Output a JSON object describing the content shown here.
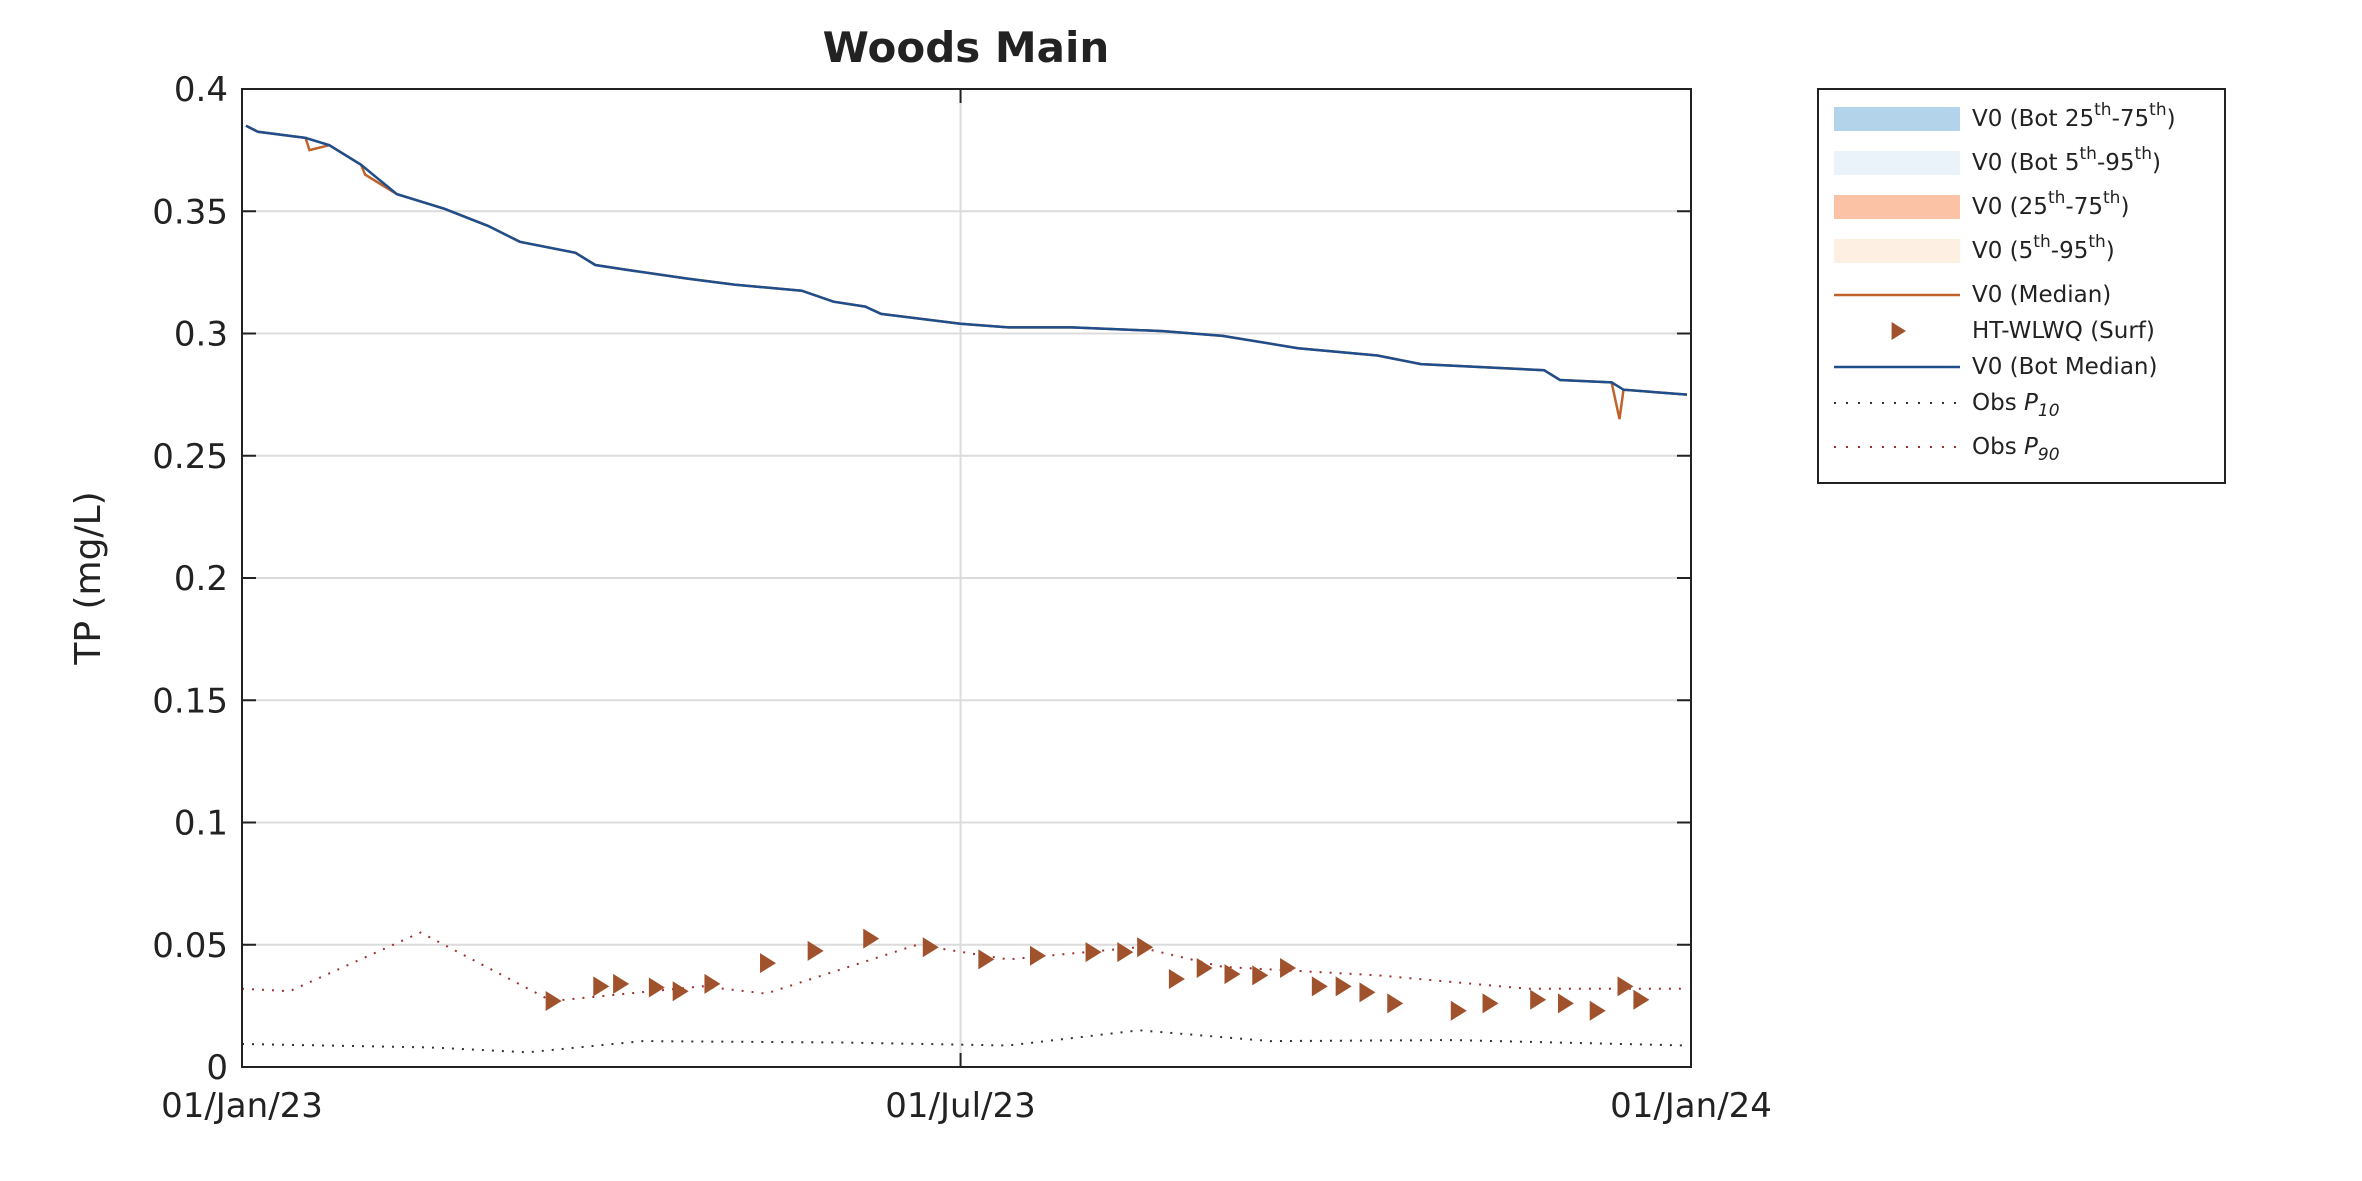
{
  "chart_data": {
    "type": "line",
    "title": "Woods Main",
    "ylabel": "TP (mg/L)",
    "xlim": [
      "2023-01-01",
      "2024-01-01"
    ],
    "xticks": [
      {
        "value": "2023-01-01",
        "label": "01/Jan/23"
      },
      {
        "value": "2023-07-01",
        "label": "01/Jul/23"
      },
      {
        "value": "2024-01-01",
        "label": "01/Jan/24"
      }
    ],
    "ylim": [
      0,
      0.4
    ],
    "yticks": [
      0,
      0.05,
      0.1,
      0.15,
      0.2,
      0.25,
      0.3,
      0.35,
      0.4
    ],
    "grid": true,
    "legend": "outside right",
    "series": [
      {
        "name": "V0 (Bot 25th-75th)",
        "kind": "band",
        "color": "#b3d3ea"
      },
      {
        "name": "V0 (Bot 5th-95th)",
        "kind": "band",
        "color": "#eaf3fa"
      },
      {
        "name": "V0 (25th-75th)",
        "kind": "band",
        "color": "#fcc2a5"
      },
      {
        "name": "V0 (5th-95th)",
        "kind": "band",
        "color": "#fdefe2"
      },
      {
        "name": "V0 (Median)",
        "kind": "line",
        "color": "#c0622b",
        "x": [
          "2023-01-02",
          "2023-01-05",
          "2023-01-17",
          "2023-01-18",
          "2023-01-23",
          "2023-01-31",
          "2023-02-01",
          "2023-02-09",
          "2023-02-21",
          "2023-03-04",
          "2023-03-12",
          "2023-03-26",
          "2023-03-31",
          "2023-04-08",
          "2023-04-23",
          "2023-05-05",
          "2023-05-22",
          "2023-05-30",
          "2023-06-07",
          "2023-06-11",
          "2023-07-01",
          "2023-07-13",
          "2023-07-29",
          "2023-08-21",
          "2023-09-05",
          "2023-09-24",
          "2023-10-14",
          "2023-10-25",
          "2023-11-25",
          "2023-11-29",
          "2023-12-12",
          "2023-12-14",
          "2023-12-15",
          "2023-12-31"
        ],
        "values": [
          0.385,
          0.3825,
          0.38,
          0.375,
          0.377,
          0.369,
          0.365,
          0.357,
          0.351,
          0.344,
          0.3375,
          0.333,
          0.328,
          0.326,
          0.3225,
          0.32,
          0.3175,
          0.313,
          0.311,
          0.308,
          0.304,
          0.3025,
          0.3025,
          0.301,
          0.299,
          0.294,
          0.291,
          0.2875,
          0.285,
          0.281,
          0.28,
          0.265,
          0.277,
          0.275
        ]
      },
      {
        "name": "HT-WLWQ (Surf)",
        "kind": "marker",
        "color": "#a0522d",
        "x": [
          "2023-03-20",
          "2023-04-01",
          "2023-04-06",
          "2023-04-15",
          "2023-04-21",
          "2023-04-29",
          "2023-05-13",
          "2023-05-25",
          "2023-06-08",
          "2023-06-23",
          "2023-07-07",
          "2023-07-20",
          "2023-08-03",
          "2023-08-11",
          "2023-08-16",
          "2023-08-24",
          "2023-08-31",
          "2023-09-07",
          "2023-09-14",
          "2023-09-21",
          "2023-09-29",
          "2023-10-05",
          "2023-10-11",
          "2023-10-18",
          "2023-11-03",
          "2023-11-11",
          "2023-11-23",
          "2023-11-30",
          "2023-12-08",
          "2023-12-15",
          "2023-12-19"
        ],
        "values": [
          0.027,
          0.033,
          0.034,
          0.0325,
          0.031,
          0.034,
          0.0425,
          0.0475,
          0.0525,
          0.049,
          0.044,
          0.0455,
          0.047,
          0.047,
          0.049,
          0.036,
          0.0405,
          0.038,
          0.0375,
          0.0405,
          0.033,
          0.033,
          0.0305,
          0.026,
          0.023,
          0.026,
          0.0275,
          0.026,
          0.023,
          0.033,
          0.0275
        ]
      },
      {
        "name": "V0 (Bot Median)",
        "kind": "line",
        "color": "#1f4e8c",
        "x": [
          "2023-01-02",
          "2023-01-05",
          "2023-01-17",
          "2023-01-23",
          "2023-01-31",
          "2023-02-09",
          "2023-02-21",
          "2023-03-04",
          "2023-03-12",
          "2023-03-26",
          "2023-03-31",
          "2023-04-08",
          "2023-04-23",
          "2023-05-05",
          "2023-05-22",
          "2023-05-30",
          "2023-06-07",
          "2023-06-11",
          "2023-07-01",
          "2023-07-13",
          "2023-07-29",
          "2023-08-21",
          "2023-09-05",
          "2023-09-24",
          "2023-10-14",
          "2023-10-25",
          "2023-11-25",
          "2023-11-29",
          "2023-12-12",
          "2023-12-15",
          "2023-12-31"
        ],
        "values": [
          0.385,
          0.3825,
          0.38,
          0.377,
          0.369,
          0.357,
          0.351,
          0.344,
          0.3375,
          0.333,
          0.328,
          0.326,
          0.3225,
          0.32,
          0.3175,
          0.313,
          0.311,
          0.308,
          0.304,
          0.3025,
          0.3025,
          0.301,
          0.299,
          0.294,
          0.291,
          0.2875,
          0.285,
          0.281,
          0.28,
          0.277,
          0.275
        ]
      },
      {
        "name": "Obs P10",
        "kind": "dotted",
        "color": "#333333",
        "x": [
          "2023-01-01",
          "2023-02-17",
          "2023-03-14",
          "2023-04-12",
          "2023-06-01",
          "2023-07-13",
          "2023-08-15",
          "2023-09-17",
          "2023-11-02",
          "2023-12-31"
        ],
        "values": [
          0.0094,
          0.008,
          0.006,
          0.0106,
          0.01,
          0.0088,
          0.015,
          0.0106,
          0.011,
          0.0088
        ]
      },
      {
        "name": "Obs P90",
        "kind": "dotted",
        "color": "#a03030",
        "x": [
          "2023-01-01",
          "2023-01-13",
          "2023-02-15",
          "2023-03-20",
          "2023-04-27",
          "2023-05-13",
          "2023-06-20",
          "2023-07-13",
          "2023-08-15",
          "2023-09-05",
          "2023-10-14",
          "2023-11-21",
          "2023-12-31"
        ],
        "values": [
          0.032,
          0.031,
          0.055,
          0.027,
          0.033,
          0.03,
          0.05,
          0.044,
          0.049,
          0.041,
          0.0375,
          0.032,
          0.032
        ]
      }
    ]
  }
}
